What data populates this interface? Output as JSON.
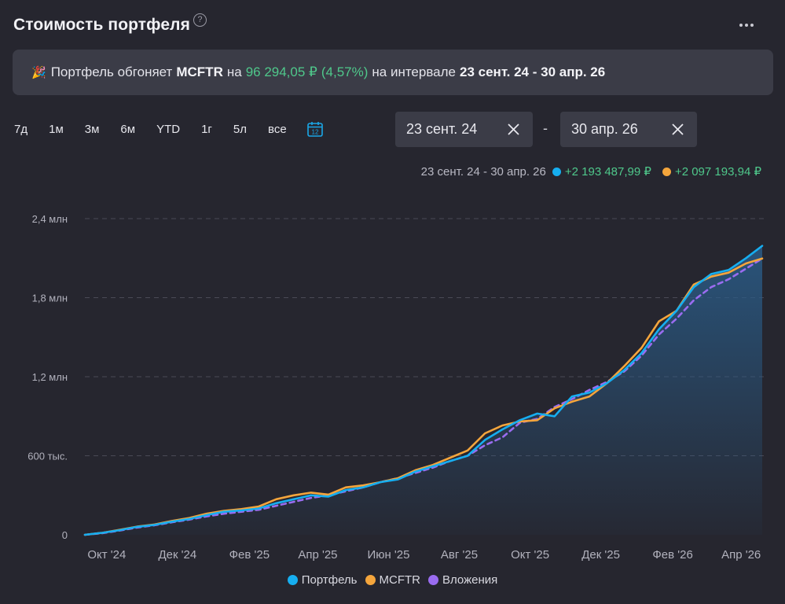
{
  "header": {
    "title": "Стоимость портфеля",
    "help_glyph": "?"
  },
  "banner": {
    "emoji": "🎉",
    "text_1": "Портфель обгоняет",
    "benchmark": "MCFTR",
    "text_2": "на",
    "diff_value": "96 294,05 ₽",
    "diff_percent": "(4,57%)",
    "text_3": "на интервале",
    "interval": "23 сент. 24 - 30 апр. 26"
  },
  "range_buttons": [
    "7д",
    "1м",
    "3м",
    "6м",
    "YTD",
    "1г",
    "5л",
    "все"
  ],
  "calendar_day": "12",
  "date_from": {
    "value": "23 сент. 24"
  },
  "date_to": {
    "value": "30 апр. 26"
  },
  "date_separator": "-",
  "summary": {
    "interval": "23 сент. 24 - 30 апр. 26",
    "portfolio_change": "+2 193 487,99 ₽",
    "benchmark_change": "+2 097 193,94 ₽"
  },
  "colors": {
    "portfolio": "#16aef0",
    "benchmark": "#f4a53c",
    "investments": "#9a6cf0",
    "positive": "#4fc88b"
  },
  "chart_data": {
    "type": "line",
    "y_ticks": [
      "0",
      "600 тыс.",
      "1,2 млн",
      "1,8 млн",
      "2,4 млн"
    ],
    "y_tick_values": [
      0,
      600000,
      1200000,
      1800000,
      2400000
    ],
    "ylim": [
      0,
      2400000
    ],
    "grid": true,
    "x_ticks": [
      "Окт '24",
      "Дек '24",
      "Фев '25",
      "Апр '25",
      "Июн '25",
      "Авг '25",
      "Окт '25",
      "Дек '25",
      "Фев '26",
      "Апр '26"
    ],
    "x_tick_dates": [
      "2024-10-01",
      "2024-12-01",
      "2025-02-01",
      "2025-04-01",
      "2025-06-01",
      "2025-08-01",
      "2025-10-01",
      "2025-12-01",
      "2026-02-01",
      "2026-04-01"
    ],
    "xlim": [
      "2024-09-23",
      "2026-04-30"
    ],
    "legend_position": "bottom",
    "series": [
      {
        "name": "Портфель",
        "style": "solid",
        "fill": true,
        "points": [
          [
            "2024-09-23",
            0
          ],
          [
            "2024-10-08",
            15000
          ],
          [
            "2024-10-23",
            35000
          ],
          [
            "2024-11-07",
            60000
          ],
          [
            "2024-11-22",
            75000
          ],
          [
            "2024-12-07",
            100000
          ],
          [
            "2024-12-22",
            120000
          ],
          [
            "2025-01-06",
            150000
          ],
          [
            "2025-01-21",
            175000
          ],
          [
            "2025-02-05",
            185000
          ],
          [
            "2025-02-20",
            200000
          ],
          [
            "2025-03-07",
            240000
          ],
          [
            "2025-03-22",
            270000
          ],
          [
            "2025-04-06",
            300000
          ],
          [
            "2025-04-21",
            290000
          ],
          [
            "2025-05-06",
            340000
          ],
          [
            "2025-05-21",
            360000
          ],
          [
            "2025-06-05",
            400000
          ],
          [
            "2025-06-20",
            420000
          ],
          [
            "2025-07-05",
            480000
          ],
          [
            "2025-07-20",
            520000
          ],
          [
            "2025-08-04",
            560000
          ],
          [
            "2025-08-19",
            600000
          ],
          [
            "2025-09-03",
            720000
          ],
          [
            "2025-09-18",
            800000
          ],
          [
            "2025-10-03",
            870000
          ],
          [
            "2025-10-18",
            920000
          ],
          [
            "2025-11-02",
            900000
          ],
          [
            "2025-11-17",
            1050000
          ],
          [
            "2025-12-02",
            1080000
          ],
          [
            "2025-12-17",
            1150000
          ],
          [
            "2026-01-01",
            1250000
          ],
          [
            "2026-01-16",
            1380000
          ],
          [
            "2026-01-31",
            1560000
          ],
          [
            "2026-02-15",
            1700000
          ],
          [
            "2026-03-02",
            1880000
          ],
          [
            "2026-03-17",
            1980000
          ],
          [
            "2026-04-01",
            2010000
          ],
          [
            "2026-04-16",
            2100000
          ],
          [
            "2026-04-30",
            2193488
          ]
        ]
      },
      {
        "name": "MCFTR",
        "style": "solid",
        "fill": false,
        "points": [
          [
            "2024-09-23",
            0
          ],
          [
            "2024-10-08",
            15000
          ],
          [
            "2024-10-23",
            38000
          ],
          [
            "2024-11-07",
            62000
          ],
          [
            "2024-11-22",
            78000
          ],
          [
            "2024-12-07",
            105000
          ],
          [
            "2024-12-22",
            128000
          ],
          [
            "2025-01-06",
            160000
          ],
          [
            "2025-01-21",
            182000
          ],
          [
            "2025-02-05",
            195000
          ],
          [
            "2025-02-20",
            215000
          ],
          [
            "2025-03-07",
            270000
          ],
          [
            "2025-03-22",
            300000
          ],
          [
            "2025-04-06",
            320000
          ],
          [
            "2025-04-21",
            305000
          ],
          [
            "2025-05-06",
            360000
          ],
          [
            "2025-05-21",
            375000
          ],
          [
            "2025-06-05",
            400000
          ],
          [
            "2025-06-20",
            430000
          ],
          [
            "2025-07-05",
            490000
          ],
          [
            "2025-07-20",
            530000
          ],
          [
            "2025-08-04",
            585000
          ],
          [
            "2025-08-19",
            640000
          ],
          [
            "2025-09-03",
            770000
          ],
          [
            "2025-09-18",
            830000
          ],
          [
            "2025-10-03",
            860000
          ],
          [
            "2025-10-18",
            870000
          ],
          [
            "2025-11-02",
            960000
          ],
          [
            "2025-11-17",
            1010000
          ],
          [
            "2025-12-02",
            1050000
          ],
          [
            "2025-12-17",
            1150000
          ],
          [
            "2026-01-01",
            1280000
          ],
          [
            "2026-01-16",
            1420000
          ],
          [
            "2026-01-31",
            1620000
          ],
          [
            "2026-02-15",
            1700000
          ],
          [
            "2026-03-02",
            1900000
          ],
          [
            "2026-03-17",
            1960000
          ],
          [
            "2026-04-01",
            1990000
          ],
          [
            "2026-04-16",
            2060000
          ],
          [
            "2026-04-30",
            2097194
          ]
        ]
      },
      {
        "name": "Вложения",
        "style": "dashed",
        "fill": false,
        "points": [
          [
            "2024-09-23",
            0
          ],
          [
            "2024-10-08",
            12000
          ],
          [
            "2024-10-23",
            32000
          ],
          [
            "2024-11-07",
            55000
          ],
          [
            "2024-11-22",
            72000
          ],
          [
            "2024-12-07",
            95000
          ],
          [
            "2024-12-22",
            115000
          ],
          [
            "2025-01-06",
            140000
          ],
          [
            "2025-01-21",
            160000
          ],
          [
            "2025-02-05",
            175000
          ],
          [
            "2025-02-20",
            190000
          ],
          [
            "2025-03-07",
            220000
          ],
          [
            "2025-03-22",
            250000
          ],
          [
            "2025-04-06",
            280000
          ],
          [
            "2025-04-21",
            300000
          ],
          [
            "2025-05-06",
            330000
          ],
          [
            "2025-05-21",
            360000
          ],
          [
            "2025-06-05",
            400000
          ],
          [
            "2025-06-20",
            430000
          ],
          [
            "2025-07-05",
            470000
          ],
          [
            "2025-07-20",
            510000
          ],
          [
            "2025-08-04",
            560000
          ],
          [
            "2025-08-19",
            600000
          ],
          [
            "2025-09-03",
            680000
          ],
          [
            "2025-09-18",
            740000
          ],
          [
            "2025-10-03",
            850000
          ],
          [
            "2025-10-18",
            880000
          ],
          [
            "2025-11-02",
            970000
          ],
          [
            "2025-11-17",
            1030000
          ],
          [
            "2025-12-02",
            1100000
          ],
          [
            "2025-12-17",
            1160000
          ],
          [
            "2026-01-01",
            1240000
          ],
          [
            "2026-01-16",
            1360000
          ],
          [
            "2026-01-31",
            1520000
          ],
          [
            "2026-02-15",
            1640000
          ],
          [
            "2026-03-02",
            1780000
          ],
          [
            "2026-03-17",
            1880000
          ],
          [
            "2026-04-01",
            1940000
          ],
          [
            "2026-04-16",
            2020000
          ],
          [
            "2026-04-30",
            2097194
          ]
        ]
      }
    ]
  }
}
